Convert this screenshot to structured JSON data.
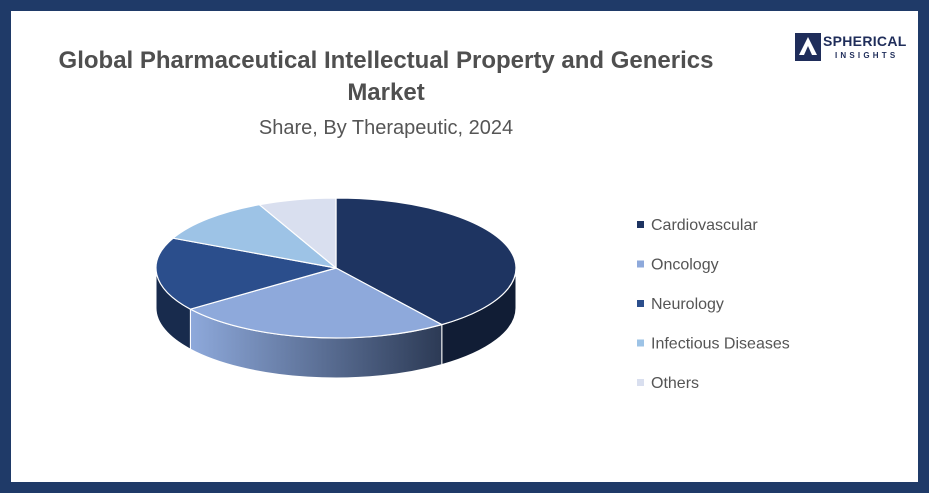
{
  "title": {
    "line1": "Global Pharmaceutical Intellectual Property and Generics",
    "line2": "Market"
  },
  "subtitle": "Share, By Therapeutic, 2024",
  "logo": {
    "word1": "SPHERICAL",
    "word2": "INSIGHTS"
  },
  "chart_data": {
    "type": "pie",
    "style": "3d",
    "title": "Global Pharmaceutical Intellectual Property and Generics Market",
    "subtitle": "Share, By Therapeutic, 2024",
    "legend_position": "right",
    "categories": [
      "Cardiovascular",
      "Oncology",
      "Neurology",
      "Infectious Diseases",
      "Others"
    ],
    "values": [
      40,
      25,
      17,
      11,
      7
    ],
    "colors": [
      "#1e3461",
      "#8ea9db",
      "#2b4e8c",
      "#9dc3e6",
      "#d9dfef"
    ]
  }
}
